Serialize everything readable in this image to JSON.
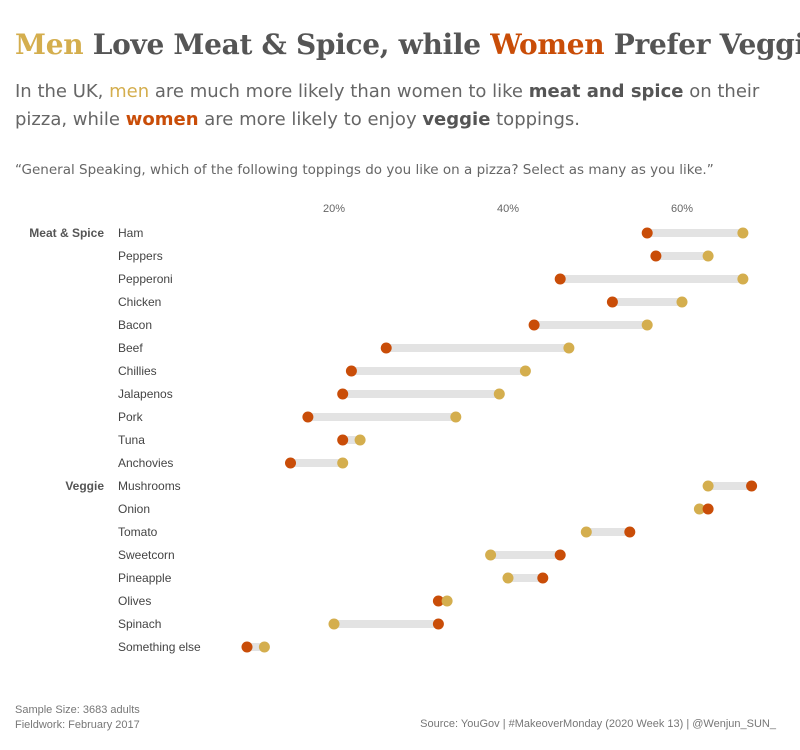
{
  "header": {
    "title_men": "Men",
    "title_mid": " Love Meat & Spice, while ",
    "title_women": "Women",
    "title_end": " Prefer Veggies",
    "subtitle_p1": "In the UK, ",
    "subtitle_men": "men",
    "subtitle_p2": " are much more likely than women to like ",
    "subtitle_b1": "meat and spice",
    "subtitle_p3": " on their pizza, while ",
    "subtitle_women": "women",
    "subtitle_p4": " are more likely to enjoy ",
    "subtitle_b2": "veggie",
    "subtitle_p5": " toppings.",
    "question": "“General Speaking, which of the following toppings do you like on a pizza? Select as many as you like.”"
  },
  "footer": {
    "sample": "Sample Size: 3683 adults",
    "fieldwork": "Fieldwork: February 2017",
    "source": "Source: YouGov | #MakeoverMonday (2020 Week 13) | @Wenjun_SUN_"
  },
  "colors": {
    "men": "#d4ae4e",
    "women": "#c94d08",
    "connector": "#e3e3e3",
    "text": "#555555"
  },
  "chart_data": {
    "type": "dot-plot",
    "x_ticks": [
      20,
      40,
      60
    ],
    "x_tick_suffix": "%",
    "xlim": [
      0,
      72
    ],
    "grid": false,
    "series": [
      {
        "key": "men",
        "name": "Men"
      },
      {
        "key": "women",
        "name": "Women"
      }
    ],
    "groups": [
      {
        "name": "Meat & Spice",
        "items": [
          {
            "label": "Ham",
            "men": 67,
            "women": 56
          },
          {
            "label": "Peppers",
            "men": 63,
            "women": 57
          },
          {
            "label": "Pepperoni",
            "men": 67,
            "women": 46
          },
          {
            "label": "Chicken",
            "men": 60,
            "women": 52
          },
          {
            "label": "Bacon",
            "men": 56,
            "women": 43
          },
          {
            "label": "Beef",
            "men": 47,
            "women": 26
          },
          {
            "label": "Chillies",
            "men": 42,
            "women": 22
          },
          {
            "label": "Jalapenos",
            "men": 39,
            "women": 21
          },
          {
            "label": "Pork",
            "men": 34,
            "women": 17
          },
          {
            "label": "Tuna",
            "men": 23,
            "women": 21
          },
          {
            "label": "Anchovies",
            "men": 21,
            "women": 15
          }
        ]
      },
      {
        "name": "Veggie",
        "items": [
          {
            "label": "Mushrooms",
            "men": 63,
            "women": 68
          },
          {
            "label": "Onion",
            "men": 62,
            "women": 63
          },
          {
            "label": "Tomato",
            "men": 49,
            "women": 54
          },
          {
            "label": "Sweetcorn",
            "men": 38,
            "women": 46
          },
          {
            "label": "Pineapple",
            "men": 40,
            "women": 44
          },
          {
            "label": "Olives",
            "men": 33,
            "women": 32
          },
          {
            "label": "Spinach",
            "men": 20,
            "women": 32
          },
          {
            "label": "Something else",
            "men": 12,
            "women": 10
          }
        ]
      }
    ]
  }
}
